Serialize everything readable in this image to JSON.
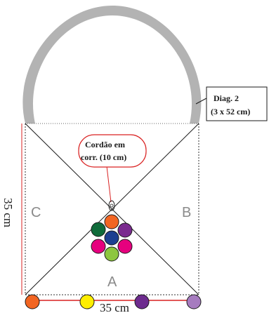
{
  "callouts": {
    "strap_label_line1": "Diag. 2",
    "strap_label_line2": "(3 x 52 cm)",
    "cord_label_line1": "Cordão em",
    "cord_label_line2": "corr. (10 cm)"
  },
  "corners": {
    "left": "C",
    "right": "B",
    "bottom": "A"
  },
  "dimensions": {
    "height": "35 cm",
    "width": "35 cm"
  },
  "colors": {
    "strap": "#b3b3b3",
    "dimension_line": "#d92020",
    "callout_border": "#d92020",
    "corner_letter": "#8a8a8a",
    "bead_stroke": "#1a1a1a",
    "flower_green": "#0f6b3a",
    "flower_orange": "#f26522",
    "flower_purple": "#7a2a8f",
    "flower_pink": "#e6007e",
    "flower_blue": "#1d3f91",
    "flower_lightgreen": "#8dc63f",
    "bead_orange": "#f26522",
    "bead_yellow": "#ffee00",
    "bead_purple": "#6d2b8e",
    "bead_lilac": "#a67bbf"
  }
}
